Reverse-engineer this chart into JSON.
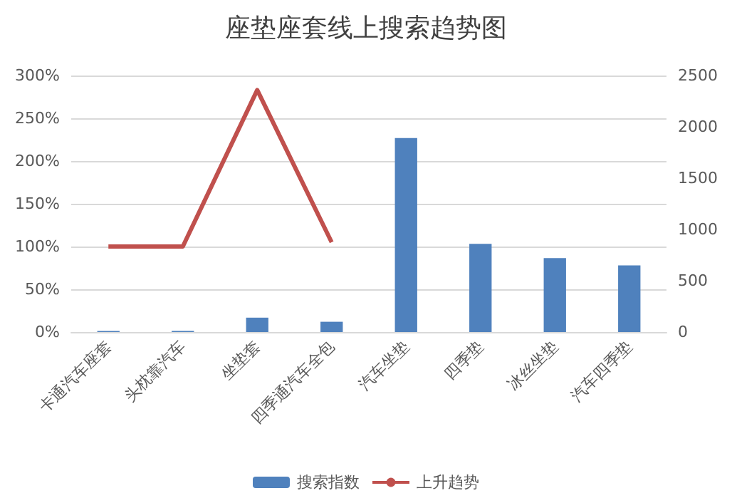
{
  "chart_data": {
    "type": "bar",
    "title": "座垫座套线上搜索趋势图",
    "categories": [
      "卡通汽车座套",
      "头枕靠汽车",
      "坐垫套",
      "四季通汽车全包",
      "汽车坐垫",
      "四季垫",
      "冰丝坐垫",
      "汽车四季垫"
    ],
    "series": [
      {
        "name": "搜索指数",
        "axis": "y2",
        "color": "#4f81bd",
        "values": [
          10,
          10,
          140,
          100,
          1890,
          860,
          720,
          650
        ]
      },
      {
        "name": "上升趋势",
        "type": "line",
        "color": "#c0504d",
        "values": [
          100,
          100,
          283,
          105,
          null,
          null,
          null,
          null
        ]
      }
    ],
    "ylim": [
      0,
      300
    ],
    "yticks": [
      {
        "value": 0,
        "label": "0%"
      },
      {
        "value": 50,
        "label": "50%"
      },
      {
        "value": 100,
        "label": "100%"
      },
      {
        "value": 150,
        "label": "150%"
      },
      {
        "value": 200,
        "label": "200%"
      },
      {
        "value": 250,
        "label": "250%"
      },
      {
        "value": 300,
        "label": "300%"
      }
    ],
    "y2lim": [
      0,
      2500
    ],
    "y2ticks": [
      0,
      500,
      1000,
      1500,
      2000,
      2500
    ],
    "grid": "y",
    "legend": "bottom",
    "marker": "none",
    "line_style": "solid"
  }
}
